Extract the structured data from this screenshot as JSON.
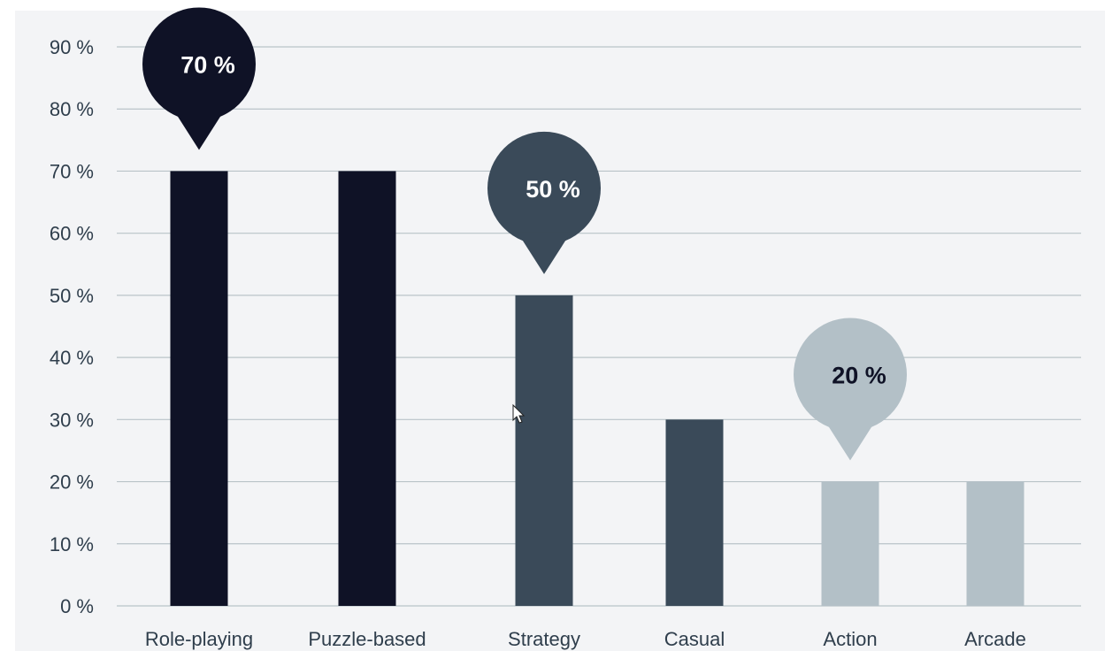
{
  "chart_data": {
    "type": "bar",
    "categories": [
      "Role-playing",
      "Puzzle-based",
      "Strategy",
      "Casual",
      "Action",
      "Arcade"
    ],
    "values": [
      70,
      70,
      50,
      30,
      20,
      20
    ],
    "bar_colors": [
      "#0f1226",
      "#0f1226",
      "#3a4a59",
      "#3a4a59",
      "#b3c0c7",
      "#b3c0c7"
    ],
    "yticks": [
      0,
      10,
      20,
      30,
      40,
      50,
      60,
      70,
      80,
      90
    ],
    "ytick_labels": [
      "0 %",
      "10 %",
      "20 %",
      "30 %",
      "40 %",
      "50 %",
      "60 %",
      "70 %",
      "80 %",
      "90 %"
    ],
    "ylim": [
      0,
      90
    ],
    "grid": true,
    "callouts": [
      {
        "category_index": 0,
        "label": "70 %",
        "fill": "#0f1226",
        "text_color": "#ffffff"
      },
      {
        "category_index": 2,
        "label": "50 %",
        "fill": "#3a4a59",
        "text_color": "#ffffff"
      },
      {
        "category_index": 4,
        "label": "20 %",
        "fill": "#b3c0c7",
        "text_color": "#0f1226"
      }
    ]
  }
}
